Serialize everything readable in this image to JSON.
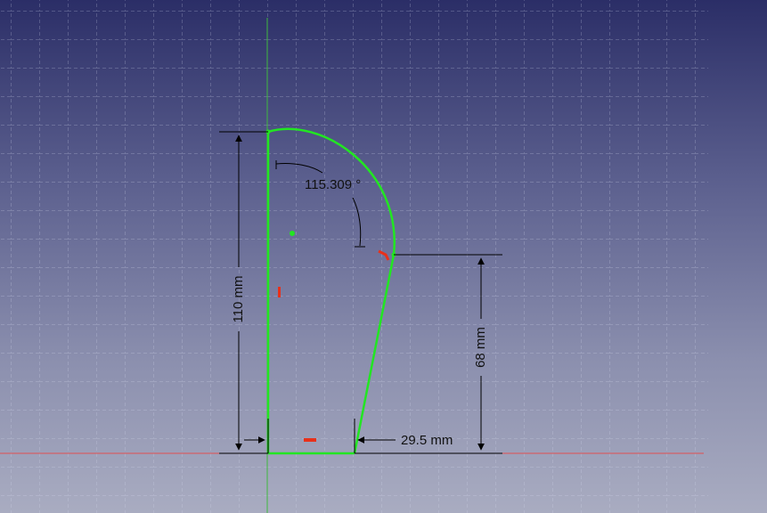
{
  "app": {
    "view": "sketcher-3d-view"
  },
  "colors": {
    "background_top": "#2b2e67",
    "background_bottom": "#a9acc1",
    "grid": "#d8dcef",
    "sketch_geometry": "#22e622",
    "constraint_symbol": "#e8301a",
    "x_axis": "#e05050",
    "y_axis": "#3fb83f",
    "dimension": "#000000"
  },
  "dimensions": {
    "angle": "115.309 °",
    "height_total": "110 mm",
    "height_right": "68 mm",
    "bottom_width": "29.5 mm"
  }
}
